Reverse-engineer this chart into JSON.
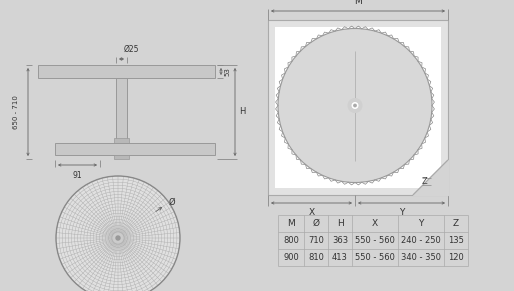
{
  "bg_color": "#d4d4d4",
  "table_headers": [
    "M",
    "Ø",
    "H",
    "X",
    "Y",
    "Z"
  ],
  "table_rows": [
    [
      "800",
      "710",
      "363",
      "550 - 560",
      "240 - 250",
      "135"
    ],
    [
      "900",
      "810",
      "413",
      "550 - 560",
      "340 - 350",
      "120"
    ]
  ],
  "dim_label_650_710": "650 - 710",
  "dim_label_H": "H",
  "dim_label_91": "91",
  "dim_label_25": "Ø25",
  "dim_label_53": "53",
  "dim_label_phi": "Ø",
  "dim_label_M": "M",
  "dim_label_X": "X",
  "dim_label_Y": "Y",
  "dim_label_Z": "Z"
}
